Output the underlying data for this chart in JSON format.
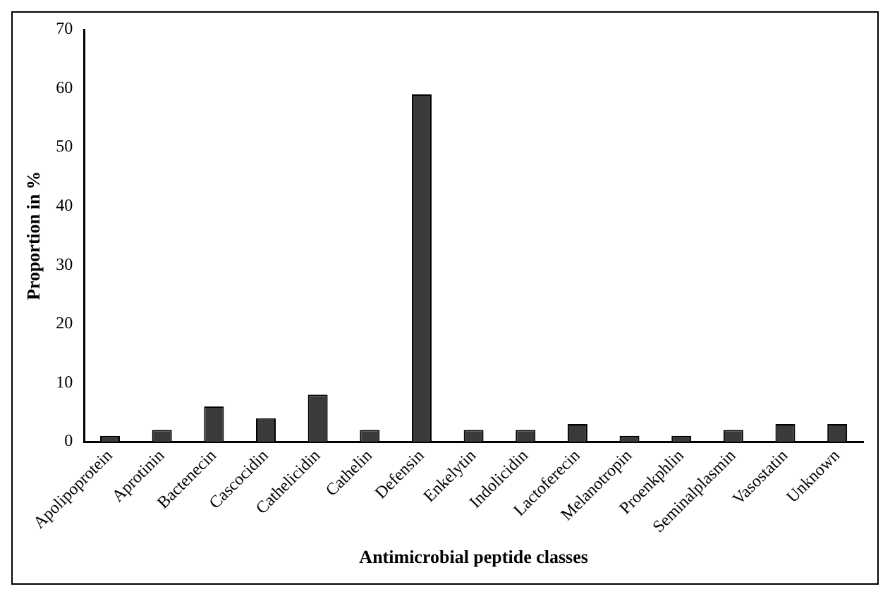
{
  "chart_data": {
    "type": "bar",
    "xlabel": "Antimicrobial peptide classes",
    "ylabel": "Proportion in %",
    "categories": [
      "Apolipoprotein",
      "Aprotinin",
      "Bactenecin",
      "Cascocidin",
      "Cathelicidin",
      "Cathelin",
      "Defensin",
      "Enkelytin",
      "Indolicidin",
      "Lactoferecin",
      "Melanotropin",
      "Proenkphlin",
      "Seminalplasmin",
      "Vasostatin",
      "Unknown"
    ],
    "values": [
      1,
      2,
      6,
      4,
      8,
      2,
      59,
      2,
      2,
      3,
      1,
      1,
      2,
      3,
      3
    ],
    "color": "#3a3a3a",
    "ylim": [
      0,
      70
    ],
    "yticks": [
      0,
      10,
      20,
      30,
      40,
      50,
      60,
      70
    ],
    "grid": false,
    "legend": false
  }
}
